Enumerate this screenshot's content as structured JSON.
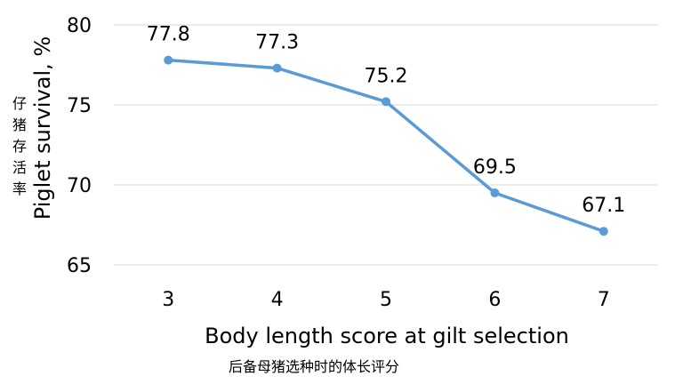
{
  "chart_data": {
    "type": "line",
    "categories": [
      "3",
      "4",
      "5",
      "6",
      "7"
    ],
    "values": [
      77.8,
      77.3,
      75.2,
      69.5,
      67.1
    ],
    "data_labels": [
      "77.8",
      "77.3",
      "75.2",
      "69.5",
      "67.1"
    ],
    "ylim": [
      65,
      80
    ],
    "yticks": [
      "65",
      "70",
      "75",
      "80"
    ],
    "xlabel": "Body length score at gilt selection",
    "xlabel_cn": "后备母猪选种时的体长评分",
    "ylabel": "Piglet survival, %",
    "ylabel_cn": "仔猪存活率",
    "grid": true,
    "legend": "none",
    "colors": {
      "line": "#5b9bd5",
      "grid": "#d9d9d9"
    }
  }
}
